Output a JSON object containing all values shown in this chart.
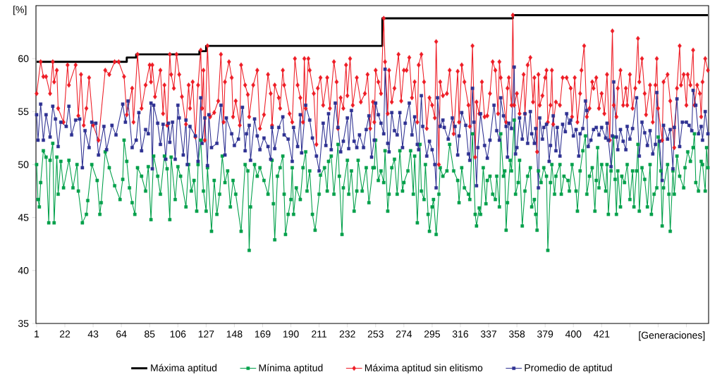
{
  "chart_data": {
    "type": "line",
    "xlabel": "[Generaciones]",
    "ylabel": "[%]",
    "xlim": [
      0.5,
      500.5
    ],
    "ylim": [
      35,
      65
    ],
    "xticks": [
      1,
      22,
      43,
      64,
      85,
      106,
      127,
      148,
      169,
      190,
      211,
      232,
      253,
      274,
      295,
      316,
      337,
      358,
      379,
      400,
      421,
      {
        "value": 442,
        "label": null
      },
      {
        "value": 463,
        "label": null
      },
      {
        "value": 484,
        "label": null
      }
    ],
    "yticks": [
      35,
      40,
      45,
      50,
      55,
      60
    ],
    "legend": "bottom",
    "grid": false,
    "series": [
      {
        "name": "Máxima aptitud",
        "type": "step",
        "color": "#000000",
        "marker": "none",
        "x": [
          1,
          68,
          75,
          122,
          127,
          258,
          355,
          500
        ],
        "values": [
          59.7,
          60.1,
          60.4,
          60.7,
          61.2,
          63.8,
          64.1,
          64.1
        ]
      },
      {
        "name": "Mínima aptitud",
        "color": "#00a04a",
        "marker": "square",
        "x": [
          1,
          2,
          3,
          4,
          6,
          8,
          10,
          11,
          13,
          14,
          16,
          17,
          19,
          21,
          25,
          28,
          31,
          32,
          35,
          38,
          39,
          42,
          46,
          48,
          49,
          52,
          55,
          59,
          63,
          65,
          66,
          68,
          70,
          72,
          74,
          76,
          79,
          82,
          84,
          86,
          88,
          91,
          93,
          96,
          98,
          100,
          101,
          104,
          106,
          108,
          112,
          114,
          116,
          118,
          120,
          121,
          123,
          125,
          127,
          128,
          131,
          133,
          135,
          137,
          139,
          141,
          143,
          145,
          147,
          149,
          153,
          156,
          158,
          159,
          160,
          163,
          165,
          167,
          170,
          173,
          176,
          177,
          178,
          180,
          182,
          184,
          185,
          186,
          188,
          190,
          191,
          192,
          194,
          197,
          199,
          201,
          202,
          204,
          206,
          208,
          211,
          212,
          215,
          217,
          218,
          220,
          222,
          225,
          226,
          228,
          229,
          232,
          233,
          235,
          237,
          239,
          240,
          243,
          246,
          248,
          251,
          252,
          253,
          255,
          257,
          259,
          260,
          262,
          263,
          265,
          267,
          269,
          271,
          273,
          274,
          277,
          279,
          281,
          282,
          284,
          286,
          287,
          289,
          290,
          292,
          293,
          295,
          296,
          298,
          300,
          301,
          303,
          306,
          308,
          311,
          314,
          315,
          317,
          319,
          322,
          323,
          325,
          327,
          328,
          330,
          331,
          333,
          335,
          336,
          338,
          340,
          342,
          343,
          345,
          346,
          348,
          349,
          350,
          351,
          353,
          354,
          356,
          357,
          359,
          360,
          362,
          364,
          366,
          368,
          369,
          371,
          372,
          373,
          374,
          376,
          378,
          380,
          381,
          383,
          384,
          386,
          387,
          390,
          391,
          393,
          396,
          397,
          399,
          402,
          403,
          405,
          407,
          409,
          410,
          412,
          414,
          416,
          417,
          418,
          419,
          421,
          424,
          425,
          426,
          428,
          430,
          431,
          432,
          433,
          435,
          436,
          438,
          440,
          442,
          444,
          445,
          447,
          448,
          449,
          451,
          453,
          455,
          457,
          458,
          460,
          462,
          463,
          465,
          466,
          467,
          470,
          471,
          472,
          474,
          475,
          477,
          479,
          482,
          483,
          485,
          487,
          489,
          490,
          491,
          493,
          495,
          496,
          498,
          499,
          500
        ],
        "values": [
          50.0,
          46.7,
          46.0,
          48.3,
          51.3,
          50.7,
          44.5,
          50.4,
          52.0,
          44.5,
          50.7,
          47.2,
          50.3,
          47.8,
          50.4,
          47.8,
          50.0,
          47.5,
          44.5,
          45.3,
          46.6,
          50.0,
          48.5,
          45.3,
          46.4,
          51.2,
          49.7,
          48.0,
          46.7,
          48.6,
          52.3,
          50.3,
          47.8,
          46.4,
          45.3,
          49.7,
          48.9,
          47.5,
          49.8,
          44.8,
          50.8,
          48.9,
          47.2,
          50.8,
          49.6,
          44.8,
          50.7,
          46.7,
          49.8,
          48.9,
          46.0,
          50.0,
          47.5,
          48.5,
          45.6,
          50.0,
          52.3,
          47.5,
          45.6,
          49.7,
          43.7,
          48.5,
          45.3,
          47.2,
          50.8,
          48.3,
          49.4,
          46.0,
          48.5,
          47.2,
          43.7,
          50.0,
          49.4,
          41.9,
          46.0,
          50.0,
          48.9,
          49.7,
          48.5,
          47.2,
          50.4,
          46.3,
          42.9,
          48.9,
          49.7,
          50.8,
          47.2,
          43.4,
          45.3,
          46.7,
          49.7,
          45.3,
          47.8,
          46.7,
          49.7,
          51.2,
          47.5,
          49.4,
          45.3,
          43.8,
          47.2,
          49.0,
          49.7,
          47.5,
          50.3,
          50.8,
          47.2,
          51.9,
          48.9,
          43.4,
          47.8,
          50.4,
          47.2,
          49.4,
          45.6,
          47.5,
          50.4,
          47.5,
          49.7,
          46.4,
          49.7,
          49.7,
          52.3,
          48.5,
          49.4,
          48.3,
          51.3,
          45.6,
          47.2,
          49.7,
          50.5,
          47.2,
          51.3,
          47.5,
          48.3,
          49.4,
          51.3,
          47.2,
          50.8,
          44.5,
          51.9,
          47.5,
          46.7,
          50.0,
          45.3,
          43.7,
          46.0,
          46.7,
          43.4,
          47.2,
          49.7,
          48.9,
          49.4,
          51.9,
          49.4,
          48.5,
          46.4,
          49.7,
          47.8,
          47.2,
          46.7,
          52.9,
          45.3,
          44.2,
          45.9,
          45.3,
          49.7,
          46.3,
          48.5,
          48.9,
          47.2,
          46.7,
          48.9,
          46.0,
          52.9,
          48.9,
          49.4,
          43.8,
          46.4,
          50.4,
          49.4,
          54.2,
          47.2,
          48.3,
          50.4,
          44.2,
          47.5,
          48.9,
          49.7,
          46.0,
          46.7,
          45.3,
          43.8,
          49.4,
          48.3,
          49.7,
          48.9,
          41.9,
          48.3,
          50.0,
          47.2,
          48.9,
          50.0,
          47.2,
          48.9,
          48.5,
          47.5,
          50.0,
          47.5,
          45.6,
          49.4,
          51.3,
          52.7,
          47.2,
          48.9,
          49.7,
          45.6,
          48.5,
          51.6,
          47.8,
          50.0,
          47.5,
          50.0,
          45.3,
          49.4,
          52.6,
          48.6,
          45.3,
          49.4,
          46.0,
          48.9,
          48.3,
          50.0,
          46.7,
          49.4,
          46.0,
          49.4,
          51.9,
          45.6,
          49.7,
          48.6,
          46.0,
          50.0,
          45.3,
          47.2,
          47.8,
          52.6,
          49.4,
          44.2,
          47.8,
          50.0,
          47.2,
          43.7,
          49.4,
          47.2,
          50.8,
          48.9,
          47.8,
          49.7,
          51.2,
          50.3,
          51.6,
          52.9,
          48.3,
          47.5,
          50.3,
          50.0,
          47.5,
          51.6,
          49.7
        ]
      },
      {
        "name": "Máxima aptitud sin elitismo",
        "color": "#ee1c25",
        "marker": "diamond",
        "x": [
          1,
          4,
          6,
          8,
          11,
          13,
          14,
          16,
          17,
          21,
          24,
          25,
          30,
          32,
          34,
          36,
          38,
          40,
          43,
          47,
          52,
          55,
          59,
          62,
          66,
          68,
          72,
          73,
          76,
          79,
          82,
          85,
          86,
          87,
          89,
          93,
          95,
          96,
          98,
          100,
          101,
          103,
          105,
          107,
          109,
          112,
          114,
          115,
          117,
          119,
          121,
          123,
          124,
          125,
          126,
          128,
          130,
          133,
          136,
          138,
          140,
          141,
          144,
          146,
          147,
          149,
          152,
          153,
          156,
          158,
          159,
          162,
          165,
          167,
          170,
          173,
          175,
          176,
          178,
          181,
          182,
          184,
          185,
          189,
          191,
          193,
          195,
          197,
          199,
          200,
          201,
          203,
          204,
          207,
          209,
          210,
          212,
          214,
          217,
          219,
          222,
          224,
          225,
          227,
          229,
          231,
          232,
          234,
          236,
          239,
          242,
          245,
          247,
          249,
          251,
          252,
          253,
          255,
          257,
          259,
          260,
          262,
          263,
          265,
          267,
          270,
          272,
          274,
          276,
          278,
          280,
          282,
          284,
          285,
          287,
          289,
          291,
          293,
          295,
          297,
          298,
          300,
          301,
          303,
          306,
          308,
          311,
          314,
          315,
          317,
          319,
          322,
          323,
          325,
          327,
          328,
          330,
          332,
          334,
          336,
          338,
          340,
          342,
          344,
          345,
          346,
          350,
          351,
          352,
          354,
          355,
          356,
          358,
          360,
          363,
          364,
          366,
          368,
          370,
          371,
          373,
          374,
          375,
          377,
          379,
          380,
          381,
          383,
          384,
          385,
          387,
          390,
          392,
          395,
          398,
          399,
          401,
          403,
          405,
          406,
          408,
          410,
          412,
          414,
          415,
          417,
          419,
          421,
          423,
          425,
          427,
          429,
          430,
          432,
          433,
          435,
          437,
          439,
          440,
          442,
          444,
          446,
          448,
          449,
          451,
          453,
          454,
          457,
          459,
          461,
          462,
          463,
          466,
          467,
          470,
          472,
          475,
          477,
          479,
          480,
          482,
          484,
          485,
          487,
          489,
          490,
          492,
          494,
          495,
          496,
          498,
          500
        ],
        "values": [
          56.7,
          59.7,
          58.3,
          58.3,
          56.7,
          59.7,
          57.8,
          58.9,
          55.3,
          54.0,
          59.4,
          57.5,
          59.4,
          54.6,
          58.5,
          53.7,
          55.3,
          58.2,
          53.7,
          52.3,
          58.9,
          58.5,
          59.7,
          59.7,
          58.3,
          54.7,
          57.2,
          54.0,
          60.4,
          55.3,
          57.5,
          59.4,
          57.8,
          59.4,
          56.4,
          58.9,
          54.8,
          57.5,
          53.7,
          60.4,
          58.5,
          57.2,
          60.4,
          58.5,
          56.4,
          53.8,
          57.5,
          55.3,
          57.8,
          52.6,
          57.5,
          60.8,
          55.3,
          58.9,
          52.3,
          61.2,
          54.5,
          54.9,
          56.0,
          60.4,
          54.0,
          57.8,
          59.7,
          58.2,
          54.5,
          56.0,
          53.7,
          59.4,
          57.5,
          56.6,
          54.5,
          57.5,
          58.9,
          53.4,
          54.7,
          58.5,
          56.7,
          53.7,
          57.5,
          56.3,
          55.3,
          58.9,
          57.5,
          54.8,
          54.0,
          60.0,
          57.5,
          56.3,
          54.0,
          60.0,
          55.3,
          60.0,
          58.9,
          56.7,
          51.9,
          57.2,
          58.2,
          55.6,
          58.2,
          55.3,
          59.7,
          57.8,
          53.4,
          56.3,
          55.3,
          59.4,
          56.5,
          60.0,
          55.6,
          58.2,
          55.9,
          56.7,
          58.5,
          53.4,
          55.9,
          54.0,
          58.9,
          57.8,
          56.7,
          63.8,
          59.7,
          54.8,
          58.9,
          55.9,
          57.2,
          60.4,
          56.0,
          58.9,
          58.9,
          60.1,
          56.3,
          57.8,
          54.0,
          59.4,
          60.4,
          57.8,
          53.4,
          56.3,
          55.6,
          54.4,
          61.6,
          50.0,
          57.8,
          56.5,
          56.7,
          58.9,
          52.9,
          58.8,
          54.0,
          59.4,
          57.8,
          55.6,
          53.6,
          61.2,
          50.7,
          55.9,
          54.8,
          57.8,
          54.5,
          54.6,
          56.7,
          59.7,
          58.9,
          54.8,
          59.7,
          58.2,
          54.0,
          57.2,
          58.2,
          55.6,
          64.1,
          55.6,
          56.7,
          54.8,
          58.5,
          54.8,
          59.4,
          60.1,
          55.9,
          58.2,
          51.2,
          58.5,
          55.6,
          56.5,
          58.2,
          58.9,
          54.0,
          55.6,
          58.9,
          53.8,
          55.9,
          55.6,
          58.2,
          58.2,
          57.2,
          54.5,
          58.2,
          54.0,
          56.7,
          58.9,
          61.2,
          54.5,
          55.3,
          57.8,
          57.2,
          58.2,
          55.3,
          56.7,
          54.8,
          58.5,
          52.3,
          62.6,
          55.6,
          54.5,
          57.2,
          58.9,
          55.6,
          57.2,
          55.6,
          58.5,
          55.3,
          57.2,
          61.9,
          57.8,
          60.0,
          56.7,
          54.7,
          57.5,
          54.0,
          57.5,
          60.0,
          55.3,
          52.3,
          57.8,
          58.5,
          56.0,
          51.6,
          57.2,
          61.2,
          57.5,
          58.5,
          55.6,
          58.5,
          57.5,
          60.8,
          55.6,
          57.5,
          56.7,
          54.5,
          57.8,
          60.0,
          58.9
        ]
      },
      {
        "name": "Promedio de aptitud",
        "color": "#2e3192",
        "marker": "square",
        "x": [
          1,
          2,
          4,
          6,
          8,
          11,
          13,
          15,
          17,
          19,
          23,
          25,
          27,
          30,
          33,
          35,
          37,
          40,
          42,
          45,
          47,
          51,
          53,
          57,
          60,
          65,
          67,
          69,
          72,
          75,
          77,
          79,
          82,
          84,
          86,
          87,
          88,
          91,
          93,
          95,
          97,
          99,
          100,
          102,
          104,
          106,
          107,
          110,
          112,
          113,
          115,
          119,
          121,
          123,
          124,
          126,
          128,
          129,
          131,
          135,
          138,
          141,
          142,
          146,
          148,
          151,
          154,
          156,
          157,
          159,
          160,
          163,
          165,
          167,
          170,
          173,
          175,
          176,
          178,
          181,
          184,
          185,
          188,
          191,
          192,
          195,
          197,
          198,
          201,
          204,
          206,
          209,
          211,
          214,
          216,
          218,
          220,
          223,
          225,
          227,
          229,
          232,
          233,
          235,
          237,
          239,
          241,
          244,
          246,
          248,
          250,
          252,
          253,
          255,
          257,
          259,
          260,
          262,
          263,
          265,
          267,
          269,
          271,
          273,
          275,
          278,
          280,
          282,
          284,
          285,
          287,
          288,
          291,
          293,
          295,
          297,
          298,
          299,
          301,
          303,
          304,
          307,
          310,
          312,
          314,
          315,
          317,
          320,
          322,
          323,
          325,
          326,
          328,
          329,
          331,
          334,
          336,
          338,
          341,
          343,
          345,
          346,
          348,
          350,
          351,
          352,
          354,
          356,
          357,
          358,
          360,
          362,
          364,
          366,
          368,
          369,
          371,
          372,
          374,
          375,
          377,
          378,
          380,
          382,
          383,
          385,
          387,
          388,
          390,
          392,
          394,
          395,
          397,
          398,
          400,
          402,
          404,
          405,
          407,
          409,
          410,
          411,
          413,
          415,
          417,
          419,
          421,
          424,
          425,
          426,
          428,
          429,
          430,
          432,
          433,
          435,
          437,
          439,
          440,
          442,
          444,
          447,
          449,
          451,
          453,
          455,
          457,
          459,
          461,
          462,
          464,
          466,
          467,
          470,
          472,
          474,
          475,
          477,
          479,
          481,
          484,
          486,
          488,
          489,
          491,
          493,
          495,
          496,
          498,
          500
        ],
        "values": [
          54.7,
          52.3,
          55.7,
          52.3,
          54.7,
          52.6,
          55.5,
          54.3,
          51.7,
          54.0,
          53.6,
          55.5,
          52.8,
          54.2,
          54.3,
          49.7,
          53.2,
          51.6,
          54.0,
          53.9,
          50.9,
          53.6,
          51.4,
          53.7,
          52.8,
          55.7,
          54.0,
          56.0,
          51.6,
          52.3,
          54.9,
          51.3,
          53.3,
          52.9,
          55.8,
          49.6,
          55.6,
          53.9,
          51.9,
          53.8,
          50.5,
          53.9,
          52.1,
          54.0,
          50.5,
          55.6,
          54.4,
          50.9,
          54.2,
          50.0,
          53.6,
          52.7,
          50.3,
          56.3,
          52.0,
          54.4,
          49.9,
          54.7,
          51.6,
          52.0,
          55.6,
          50.9,
          54.4,
          52.9,
          51.8,
          52.4,
          55.4,
          51.3,
          52.9,
          53.7,
          50.4,
          54.3,
          52.7,
          51.4,
          52.5,
          51.7,
          50.5,
          53.5,
          51.5,
          53.5,
          54.5,
          52.8,
          52.4,
          50.3,
          53.5,
          51.7,
          54.7,
          51.1,
          55.6,
          54.2,
          52.5,
          50.8,
          49.4,
          53.9,
          51.8,
          54.8,
          51.4,
          55.8,
          53.5,
          51.2,
          52.2,
          54.4,
          51.5,
          55.1,
          52.2,
          51.6,
          52.8,
          51.6,
          53.3,
          54.6,
          50.7,
          52.3,
          55.8,
          54.7,
          53.9,
          52.9,
          59.0,
          52.0,
          51.2,
          54.9,
          53.2,
          52.8,
          54.9,
          51.6,
          53.9,
          55.8,
          52.8,
          54.5,
          51.9,
          51.4,
          56.5,
          53.6,
          50.8,
          52.2,
          51.4,
          50.0,
          47.8,
          56.3,
          53.6,
          54.2,
          53.5,
          52.4,
          54.4,
          53.6,
          50.9,
          52.7,
          54.9,
          53.7,
          51.0,
          50.4,
          57.2,
          54.0,
          48.0,
          51.6,
          54.8,
          51.8,
          50.6,
          52.3,
          55.6,
          53.2,
          52.3,
          56.3,
          54.6,
          53.6,
          50.7,
          53.9,
          53.4,
          59.2,
          51.0,
          51.6,
          54.4,
          52.4,
          54.8,
          52.0,
          55.0,
          52.9,
          52.0,
          53.4,
          47.8,
          54.4,
          52.4,
          53.5,
          53.8,
          50.3,
          51.8,
          54.6,
          51.3,
          53.5,
          50.8,
          53.8,
          53.1,
          54.8,
          53.9,
          54.2,
          52.7,
          53.3,
          50.8,
          52.9,
          53.4,
          56.0,
          55.1,
          51.7,
          52.3,
          53.3,
          53.5,
          52.8,
          53.5,
          52.5,
          53.9,
          52.3,
          49.8,
          52.7,
          57.8,
          52.6,
          51.4,
          53.3,
          52.2,
          51.4,
          53.6,
          52.4,
          53.4,
          56.3,
          50.8,
          54.0,
          53.0,
          51.8,
          53.2,
          51.0,
          51.9,
          56.8,
          52.2,
          48.5,
          53.7,
          52.4,
          53.3,
          49.6,
          53.5,
          56.2,
          51.7,
          54.0,
          54.0,
          53.7,
          53.2,
          57.0,
          55.6,
          52.9,
          53.6,
          52.3,
          55.0,
          52.9
        ]
      }
    ]
  }
}
